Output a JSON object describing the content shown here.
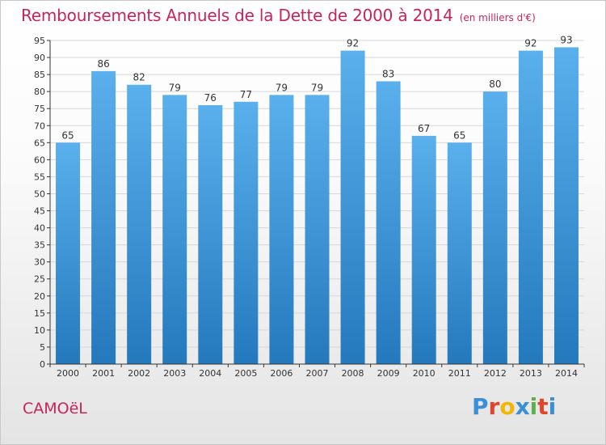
{
  "title": "Remboursements Annuels de la Dette de 2000 à 2014",
  "unit": "(en milliers d'€)",
  "commune": "CAMOëL",
  "brand": {
    "letters": [
      "P",
      "r",
      "o",
      "x",
      "i",
      "t",
      "i"
    ],
    "colors": [
      "#3b8fd6",
      "#e0452b",
      "#f2b705",
      "#3b8fd6",
      "#5bb04a",
      "#e0452b",
      "#3b8fd6"
    ]
  },
  "colors": {
    "bar_light": "#5ab0ec",
    "bar_dark": "#2479bd",
    "axis": "#333333",
    "grid": "#d7d7d7",
    "title": "#c8245a"
  },
  "chart_data": {
    "type": "bar",
    "categories": [
      "2000",
      "2001",
      "2002",
      "2003",
      "2004",
      "2005",
      "2006",
      "2007",
      "2008",
      "2009",
      "2010",
      "2011",
      "2012",
      "2013",
      "2014"
    ],
    "values": [
      65,
      86,
      82,
      79,
      76,
      77,
      79,
      79,
      92,
      83,
      67,
      65,
      80,
      92,
      93
    ],
    "title": "Remboursements Annuels de la Dette de 2000 à 2014",
    "xlabel": "",
    "ylabel": "",
    "ylim": [
      0,
      95
    ],
    "ytick_step": 5,
    "grid": true,
    "legend": "none",
    "data_labels": true
  }
}
